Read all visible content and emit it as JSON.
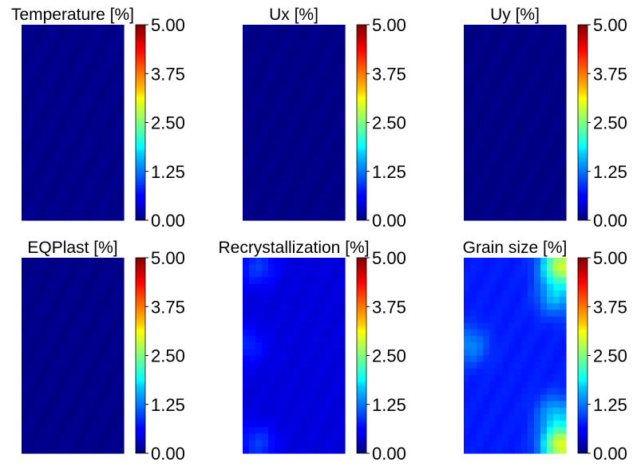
{
  "chart_data": [
    {
      "type": "heatmap",
      "title": "Temperature [%]",
      "colorbar": {
        "min": 0,
        "max": 5,
        "ticks": [
          "0.00",
          "1.25",
          "2.50",
          "3.75",
          "5.00"
        ],
        "colormap": "jet"
      },
      "field": {
        "base": 0.05,
        "spots": []
      }
    },
    {
      "type": "heatmap",
      "title": "Ux [%]",
      "colorbar": {
        "min": 0,
        "max": 5,
        "ticks": [
          "0.00",
          "1.25",
          "2.50",
          "3.75",
          "5.00"
        ],
        "colormap": "jet"
      },
      "field": {
        "base": 0.04,
        "spots": []
      }
    },
    {
      "type": "heatmap",
      "title": "Uy [%]",
      "colorbar": {
        "min": 0,
        "max": 5,
        "ticks": [
          "0.00",
          "1.25",
          "2.50",
          "3.75",
          "5.00"
        ],
        "colormap": "jet"
      },
      "field": {
        "base": 0.03,
        "spots": []
      }
    },
    {
      "type": "heatmap",
      "title": "EQPlast [%]",
      "colorbar": {
        "min": 0,
        "max": 5,
        "ticks": [
          "0.00",
          "1.25",
          "2.50",
          "3.75",
          "5.00"
        ],
        "colormap": "jet"
      },
      "field": {
        "base": 0.05,
        "spots": []
      }
    },
    {
      "type": "heatmap",
      "title": "Recrystallization [%]",
      "colorbar": {
        "min": 0,
        "max": 5,
        "ticks": [
          "0.00",
          "1.25",
          "2.50",
          "3.75",
          "5.00"
        ],
        "colormap": "jet"
      },
      "field": {
        "base": 0.45,
        "spots": [
          {
            "u": 0.15,
            "v": 0.05,
            "value": 0.9
          },
          {
            "u": 0.15,
            "v": 0.95,
            "value": 0.9
          },
          {
            "u": 0.05,
            "v": 0.45,
            "value": 0.8
          }
        ]
      }
    },
    {
      "type": "heatmap",
      "title": "Grain size [%]",
      "colorbar": {
        "min": 0,
        "max": 5,
        "ticks": [
          "0.00",
          "1.25",
          "2.50",
          "3.75",
          "5.00"
        ],
        "colormap": "jet"
      },
      "field": {
        "base": 0.75,
        "spots": [
          {
            "u": 0.95,
            "v": 0.04,
            "value": 2.9
          },
          {
            "u": 0.95,
            "v": 0.96,
            "value": 3.0
          },
          {
            "u": 0.9,
            "v": 0.2,
            "value": 1.5
          },
          {
            "u": 0.9,
            "v": 0.8,
            "value": 1.5
          },
          {
            "u": 0.05,
            "v": 0.45,
            "value": 1.3
          }
        ]
      }
    }
  ]
}
